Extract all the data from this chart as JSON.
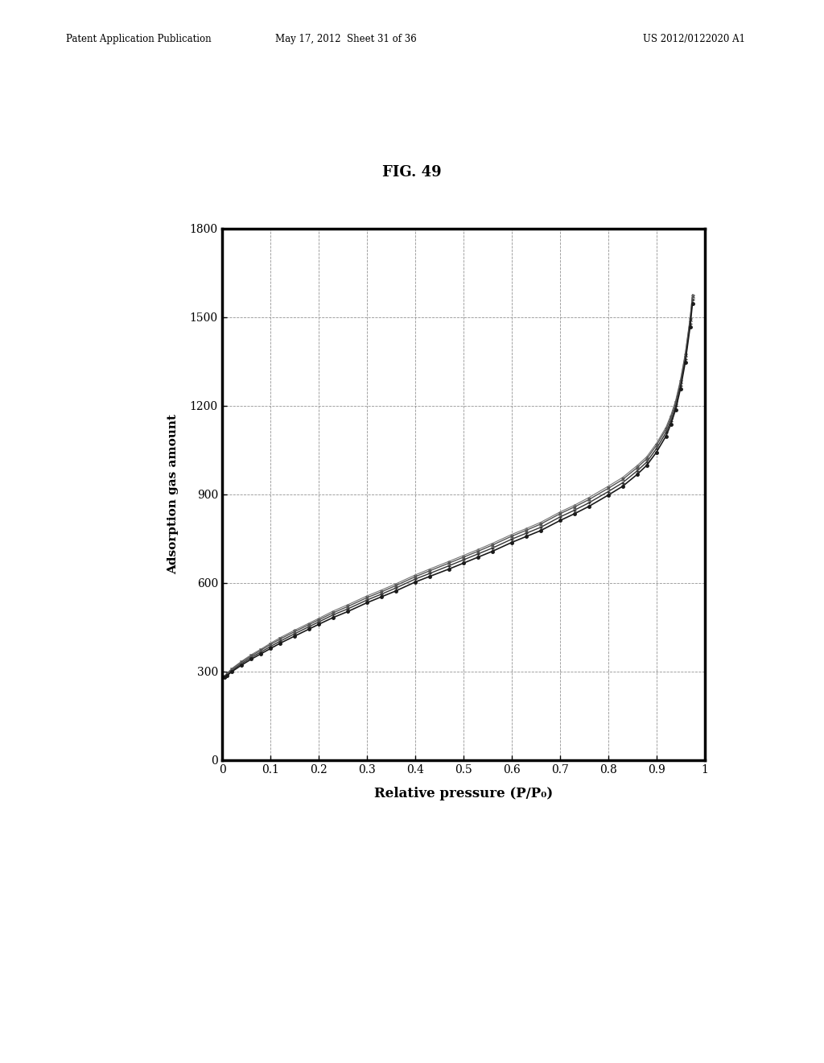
{
  "title": "FIG. 49",
  "xlabel": "Relative pressure (P/P₀)",
  "ylabel": "Adsorption gas amount",
  "xlim": [
    0,
    1
  ],
  "ylim": [
    0,
    1800
  ],
  "xticks": [
    0,
    0.1,
    0.2,
    0.3,
    0.4,
    0.5,
    0.6,
    0.7,
    0.8,
    0.9,
    1
  ],
  "yticks": [
    0,
    300,
    600,
    900,
    1200,
    1500,
    1800
  ],
  "background_color": "#ffffff",
  "header_left": "Patent Application Publication",
  "header_mid": "May 17, 2012  Sheet 31 of 36",
  "header_right": "US 2012/0122020 A1",
  "curves": [
    {
      "x": [
        0.005,
        0.01,
        0.02,
        0.04,
        0.06,
        0.08,
        0.1,
        0.12,
        0.15,
        0.18,
        0.2,
        0.23,
        0.26,
        0.3,
        0.33,
        0.36,
        0.4,
        0.43,
        0.47,
        0.5,
        0.53,
        0.56,
        0.6,
        0.63,
        0.66,
        0.7,
        0.73,
        0.76,
        0.8,
        0.83,
        0.86,
        0.88,
        0.9,
        0.92,
        0.93,
        0.94,
        0.95,
        0.96,
        0.97,
        0.975
      ],
      "y": [
        280,
        287,
        300,
        322,
        342,
        360,
        378,
        396,
        420,
        444,
        460,
        483,
        503,
        533,
        553,
        573,
        603,
        622,
        647,
        667,
        687,
        707,
        737,
        757,
        777,
        811,
        834,
        859,
        897,
        927,
        967,
        998,
        1042,
        1097,
        1137,
        1187,
        1257,
        1347,
        1467,
        1547
      ],
      "color": "#1a1a1a",
      "marker": "o",
      "markersize": 2.5,
      "linewidth": 1.2,
      "zorder": 4
    },
    {
      "x": [
        0.005,
        0.01,
        0.02,
        0.04,
        0.06,
        0.08,
        0.1,
        0.12,
        0.15,
        0.18,
        0.2,
        0.23,
        0.26,
        0.3,
        0.33,
        0.36,
        0.4,
        0.43,
        0.47,
        0.5,
        0.53,
        0.56,
        0.6,
        0.63,
        0.66,
        0.7,
        0.73,
        0.76,
        0.8,
        0.83,
        0.86,
        0.88,
        0.9,
        0.92,
        0.93,
        0.94,
        0.95,
        0.96,
        0.97,
        0.975
      ],
      "y": [
        282,
        290,
        304,
        327,
        348,
        366,
        385,
        403,
        428,
        452,
        468,
        492,
        512,
        542,
        562,
        583,
        613,
        632,
        658,
        678,
        698,
        718,
        748,
        768,
        788,
        823,
        846,
        871,
        909,
        939,
        979,
        1009,
        1054,
        1109,
        1149,
        1199,
        1269,
        1359,
        1479,
        1559
      ],
      "color": "#333333",
      "marker": "+",
      "markersize": 3.5,
      "linewidth": 1.0,
      "zorder": 3
    },
    {
      "x": [
        0.005,
        0.01,
        0.02,
        0.04,
        0.06,
        0.08,
        0.1,
        0.12,
        0.15,
        0.18,
        0.2,
        0.23,
        0.26,
        0.3,
        0.33,
        0.36,
        0.4,
        0.43,
        0.47,
        0.5,
        0.53,
        0.56,
        0.6,
        0.63,
        0.66,
        0.7,
        0.73,
        0.76,
        0.8,
        0.83,
        0.86,
        0.88,
        0.9,
        0.92,
        0.93,
        0.94,
        0.95,
        0.96,
        0.97,
        0.975
      ],
      "y": [
        284,
        293,
        308,
        332,
        353,
        372,
        392,
        410,
        435,
        459,
        475,
        499,
        520,
        550,
        570,
        591,
        621,
        641,
        667,
        687,
        707,
        728,
        758,
        778,
        799,
        834,
        857,
        882,
        920,
        950,
        990,
        1020,
        1065,
        1120,
        1160,
        1210,
        1280,
        1370,
        1490,
        1570
      ],
      "color": "#555555",
      "marker": "x",
      "markersize": 3.5,
      "linewidth": 1.0,
      "zorder": 3
    },
    {
      "x": [
        0.005,
        0.01,
        0.02,
        0.04,
        0.06,
        0.08,
        0.1,
        0.12,
        0.15,
        0.18,
        0.2,
        0.23,
        0.26,
        0.3,
        0.33,
        0.36,
        0.4,
        0.43,
        0.47,
        0.5,
        0.53,
        0.56,
        0.6,
        0.63,
        0.66,
        0.7,
        0.73,
        0.76,
        0.8,
        0.83,
        0.86,
        0.88,
        0.9,
        0.92,
        0.93,
        0.94,
        0.95,
        0.96,
        0.97,
        0.975
      ],
      "y": [
        286,
        295,
        311,
        335,
        357,
        376,
        396,
        415,
        440,
        464,
        480,
        505,
        526,
        556,
        576,
        597,
        627,
        647,
        673,
        693,
        713,
        734,
        764,
        784,
        805,
        840,
        863,
        889,
        927,
        957,
        997,
        1027,
        1072,
        1127,
        1167,
        1217,
        1287,
        1377,
        1497,
        1577
      ],
      "color": "#777777",
      "marker": ".",
      "markersize": 2.0,
      "linewidth": 0.8,
      "zorder": 2
    }
  ]
}
